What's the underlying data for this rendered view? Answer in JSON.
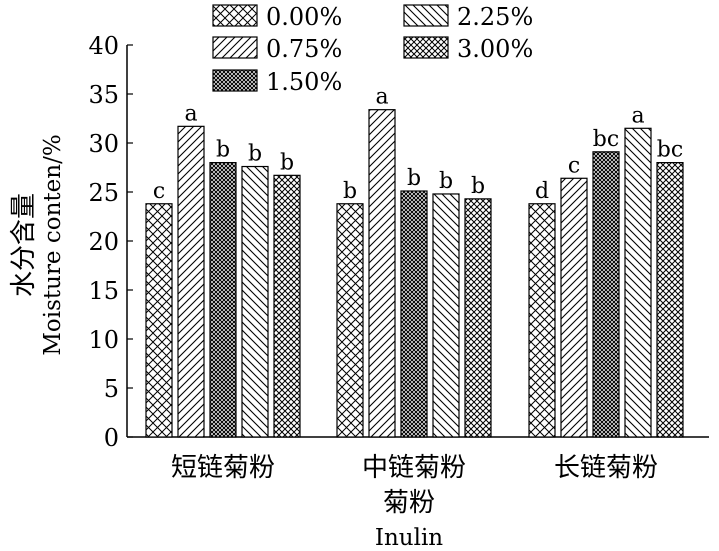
{
  "chart_data": {
    "type": "bar",
    "categories": [
      "短链菊粉",
      "中链菊粉",
      "长链菊粉"
    ],
    "series": [
      {
        "name": "0.00%",
        "pattern": "cross-hatch",
        "values": [
          23.8,
          23.8,
          23.8
        ],
        "labels": [
          "c",
          "b",
          "d"
        ]
      },
      {
        "name": "0.75%",
        "pattern": "forward-diagonal",
        "values": [
          31.7,
          33.4,
          26.4
        ],
        "labels": [
          "a",
          "a",
          "c"
        ]
      },
      {
        "name": "1.50%",
        "pattern": "dense-cross-hatch",
        "values": [
          28.0,
          25.1,
          29.1
        ],
        "labels": [
          "b",
          "b",
          "bc"
        ]
      },
      {
        "name": "2.25%",
        "pattern": "back-diagonal",
        "values": [
          27.6,
          24.8,
          31.5
        ],
        "labels": [
          "b",
          "b",
          "a"
        ]
      },
      {
        "name": "3.00%",
        "pattern": "fine-cross-hatch",
        "values": [
          26.7,
          24.3,
          28.0
        ],
        "labels": [
          "b",
          "b",
          "bc"
        ]
      }
    ],
    "ylim": [
      0,
      40
    ],
    "yticks": [
      0,
      5,
      10,
      15,
      20,
      25,
      30,
      35,
      40
    ],
    "ylabel": "水分含量",
    "ylabel_en": "Moisture conten/%",
    "xlabel": "菊粉",
    "xlabel_en": "Inulin",
    "grid": false,
    "legend_position": "top"
  }
}
